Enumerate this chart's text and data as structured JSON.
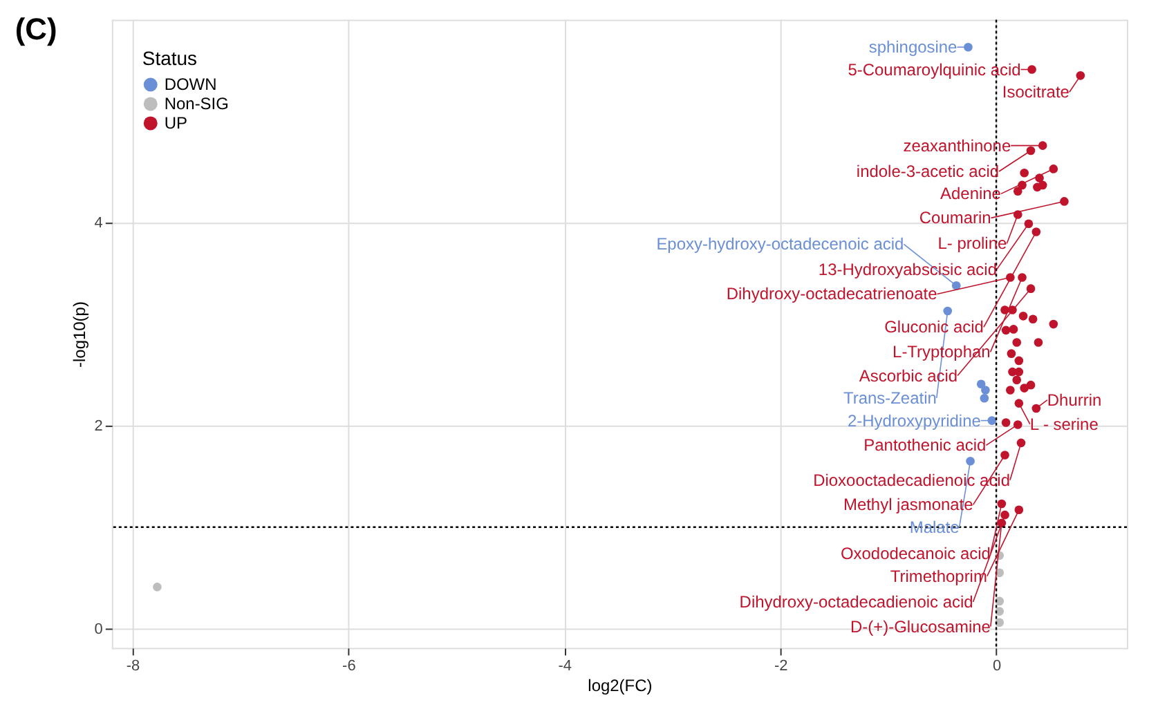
{
  "chart_data": {
    "type": "scatter",
    "title": "(C)",
    "xlabel": "log2(FC)",
    "ylabel": "-log10(p)",
    "legend_title": "Status",
    "legend": "top left",
    "grid": true,
    "marker": "circle",
    "xlim": [
      -8.19,
      1.21
    ],
    "ylim": [
      -0.19,
      6.0
    ],
    "xticks": [
      -8,
      -6,
      -4,
      -2,
      0
    ],
    "yticks": [
      0,
      2,
      4
    ],
    "ref_lines": [
      {
        "axis": "x",
        "value": 0,
        "line_style": "dotted",
        "color": "#000000"
      },
      {
        "axis": "y",
        "value": 1,
        "line_style": "dotted",
        "color": "#000000"
      }
    ],
    "series": [
      {
        "name": "DOWN",
        "color": "#6b8fd6",
        "x": [
          -0.26,
          -0.37,
          -0.45,
          -0.14,
          -0.1,
          -0.11,
          -0.04,
          -0.24
        ],
        "values": [
          5.73,
          3.38,
          3.13,
          2.41,
          2.35,
          2.27,
          2.05,
          1.65
        ]
      },
      {
        "name": "Non-SIG",
        "color": "#bdbdbd",
        "x": [
          -7.77,
          0.03,
          0.03,
          0.03,
          0.03,
          0.03
        ],
        "values": [
          0.41,
          0.72,
          0.55,
          0.27,
          0.17,
          0.06
        ]
      },
      {
        "name": "UP",
        "color": "#c0142c",
        "x": [
          0.33,
          0.78,
          0.43,
          0.32,
          0.53,
          0.26,
          0.4,
          0.24,
          0.43,
          0.2,
          0.38,
          0.63,
          0.2,
          0.3,
          0.37,
          0.24,
          0.13,
          0.32,
          0.08,
          0.15,
          0.25,
          0.34,
          0.53,
          0.09,
          0.16,
          0.19,
          0.39,
          0.14,
          0.21,
          0.15,
          0.21,
          0.19,
          0.13,
          0.26,
          0.32,
          0.37,
          0.21,
          0.09,
          0.2,
          0.23,
          0.08,
          0.05,
          0.21,
          0.08,
          0.05
        ],
        "values": [
          5.51,
          5.45,
          4.76,
          4.71,
          4.53,
          4.49,
          4.44,
          4.37,
          4.37,
          4.31,
          4.35,
          4.21,
          4.08,
          3.99,
          3.91,
          3.46,
          3.46,
          3.35,
          3.14,
          3.14,
          3.08,
          3.05,
          3.0,
          2.94,
          2.95,
          2.82,
          2.82,
          2.71,
          2.64,
          2.53,
          2.53,
          2.45,
          2.35,
          2.37,
          2.4,
          2.17,
          2.22,
          2.03,
          2.01,
          1.83,
          1.71,
          1.23,
          1.17,
          1.12,
          1.04
        ]
      }
    ],
    "annotations": [
      {
        "text": "sphingosine",
        "x": -0.26,
        "y": 5.73
      },
      {
        "text": "Epoxy-hydroxy-octadecenoic acid",
        "x": -0.37,
        "y": 3.38
      },
      {
        "text": "Trans-Zeatin",
        "x": -0.45,
        "y": 3.13
      },
      {
        "text": "2-Hydroxypyridine",
        "x": -0.04,
        "y": 2.05
      },
      {
        "text": "Malate",
        "x": -0.24,
        "y": 1.65
      },
      {
        "text": "5-Coumaroylquinic acid",
        "x": 0.33,
        "y": 5.51
      },
      {
        "text": "Isocitrate",
        "x": 0.78,
        "y": 5.45
      },
      {
        "text": "zeaxanthinone",
        "x": 0.43,
        "y": 4.76
      },
      {
        "text": "indole-3-acetic acid",
        "x": 0.32,
        "y": 4.71
      },
      {
        "text": "Adenine",
        "x": 0.53,
        "y": 4.53
      },
      {
        "text": "Coumarin",
        "x": 0.63,
        "y": 4.21
      },
      {
        "text": "L- proline",
        "x": 0.2,
        "y": 4.08
      },
      {
        "text": "13-Hydroxyabscisic acid",
        "x": 0.3,
        "y": 3.99
      },
      {
        "text": "Gluconic acid",
        "x": 0.37,
        "y": 3.91
      },
      {
        "text": "L-Tryptophan",
        "x": 0.24,
        "y": 3.46
      },
      {
        "text": "Dihydroxy-octadecatrienoate",
        "x": 0.13,
        "y": 3.46
      },
      {
        "text": "Ascorbic acid",
        "x": 0.32,
        "y": 3.35
      },
      {
        "text": "Dhurrin",
        "x": 0.37,
        "y": 2.17
      },
      {
        "text": "L - serine",
        "x": 0.21,
        "y": 2.22
      },
      {
        "text": "Pantothenic acid",
        "x": 0.2,
        "y": 2.01
      },
      {
        "text": "Dioxooctadecadienoic acid",
        "x": 0.23,
        "y": 1.83
      },
      {
        "text": "Methyl jasmonate",
        "x": 0.08,
        "y": 1.71
      },
      {
        "text": "Oxododecanoic acid",
        "x": 0.05,
        "y": 1.23
      },
      {
        "text": "Trimethoprim",
        "x": 0.21,
        "y": 1.17
      },
      {
        "text": "Dihydroxy-octadecadienoic acid",
        "x": 0.08,
        "y": 1.12
      },
      {
        "text": "D-(+)-Glucosamine",
        "x": 0.05,
        "y": 1.04
      }
    ]
  }
}
